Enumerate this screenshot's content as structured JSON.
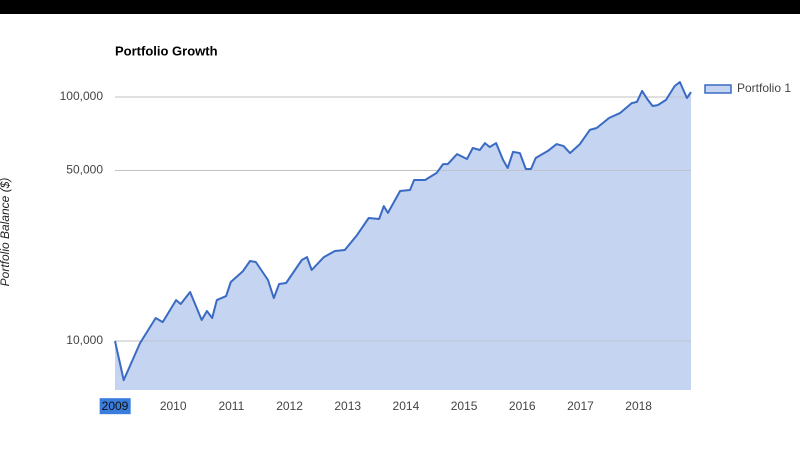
{
  "chart_data": {
    "type": "area",
    "title": "Portfolio Growth",
    "y_label": "Portfolio Balance ($)",
    "log_scale": true,
    "grid": true,
    "legend": "right",
    "x": [
      2009.0,
      2009.15,
      2009.43,
      2009.7,
      2009.82,
      2010.05,
      2010.13,
      2010.29,
      2010.49,
      2010.58,
      2010.67,
      2010.75,
      2010.91,
      2010.99,
      2011.2,
      2011.32,
      2011.42,
      2011.63,
      2011.73,
      2011.82,
      2011.94,
      2012.21,
      2012.3,
      2012.38,
      2012.59,
      2012.78,
      2012.95,
      2013.16,
      2013.36,
      2013.54,
      2013.62,
      2013.69,
      2013.9,
      2014.07,
      2014.14,
      2014.33,
      2014.53,
      2014.64,
      2014.72,
      2014.88,
      2015.05,
      2015.15,
      2015.27,
      2015.36,
      2015.44,
      2015.55,
      2015.67,
      2015.75,
      2015.84,
      2015.96,
      2016.06,
      2016.15,
      2016.23,
      2016.44,
      2016.59,
      2016.71,
      2016.82,
      2016.99,
      2017.16,
      2017.28,
      2017.49,
      2017.68,
      2017.88,
      2017.97,
      2018.06,
      2018.16,
      2018.24,
      2018.33,
      2018.47,
      2018.62,
      2018.71,
      2018.83,
      2018.9
    ],
    "series": [
      {
        "name": "Portfolio 1",
        "color": "#3a6bc4",
        "fill": "#c5d4f0",
        "values": [
          10000,
          6920,
          9810,
          12430,
          11960,
          14720,
          14180,
          15880,
          12190,
          13270,
          12430,
          14720,
          15280,
          17450,
          19350,
          21280,
          21070,
          17780,
          15000,
          17130,
          17290,
          21480,
          22080,
          19540,
          22080,
          23390,
          23600,
          27180,
          31920,
          31620,
          35730,
          33500,
          41210,
          41590,
          45710,
          45710,
          48870,
          53090,
          53090,
          58340,
          55720,
          61800,
          60670,
          64710,
          62370,
          64710,
          55210,
          51170,
          59570,
          58880,
          50700,
          50700,
          56230,
          60120,
          64120,
          62950,
          58880,
          64120,
          73280,
          74640,
          82040,
          85900,
          94410,
          95500,
          105900,
          97270,
          91830,
          92680,
          97270,
          110900,
          115100,
          99080,
          104700
        ]
      }
    ],
    "xlim": [
      2009,
      2018.9
    ],
    "xticks": [
      2009,
      2010,
      2011,
      2012,
      2013,
      2014,
      2015,
      2016,
      2017,
      2018
    ],
    "ylim": [
      6300,
      117400
    ],
    "yticks": [
      {
        "value": 10000,
        "label": "10,000"
      },
      {
        "value": 50000,
        "label": "50,000"
      },
      {
        "value": 100000,
        "label": "100,000"
      }
    ]
  }
}
